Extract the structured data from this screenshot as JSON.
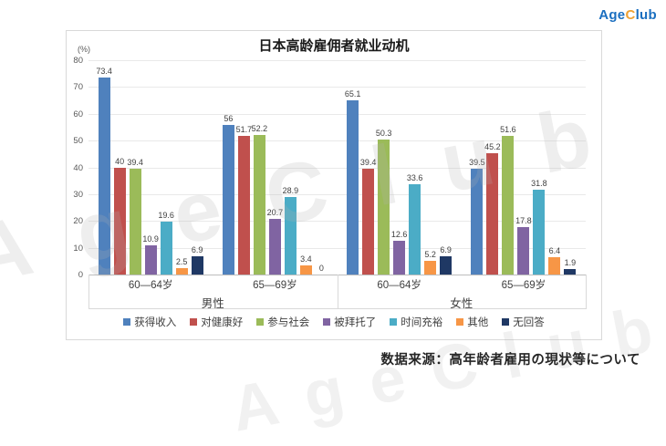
{
  "logo": {
    "part1": "Age",
    "part2": "C",
    "part3": "lub",
    "blue": "#1b6fc0",
    "orange": "#f0a233"
  },
  "watermark": "AgeClub",
  "source": "数据来源：高年龄者雇用の現状等について",
  "chart_data": {
    "type": "bar",
    "title": "日本高龄雇佣者就业动机",
    "unit_label": "(%)",
    "ylim": [
      0,
      80
    ],
    "yticks": [
      0,
      10,
      20,
      30,
      40,
      50,
      60,
      70,
      80
    ],
    "grid": true,
    "legend_position": "bottom",
    "categories": [
      "60—64岁",
      "65—69岁",
      "60—64岁",
      "65—69岁"
    ],
    "sections": [
      "男性",
      "女性"
    ],
    "series": [
      {
        "name": "获得收入",
        "color": "#4F81BD",
        "values": [
          73.4,
          56,
          65.1,
          39.5
        ]
      },
      {
        "name": "对健康好",
        "color": "#C0504D",
        "values": [
          40,
          51.7,
          39.4,
          45.2
        ]
      },
      {
        "name": "参与社会",
        "color": "#9BBB59",
        "values": [
          39.4,
          52.2,
          50.3,
          51.6
        ]
      },
      {
        "name": "被拜托了",
        "color": "#8064A2",
        "values": [
          10.9,
          20.7,
          12.6,
          17.8
        ]
      },
      {
        "name": "时间充裕",
        "color": "#4BACC6",
        "values": [
          19.6,
          28.9,
          33.6,
          31.8
        ]
      },
      {
        "name": "其他",
        "color": "#F79646",
        "values": [
          2.5,
          3.4,
          5.2,
          6.4
        ]
      },
      {
        "name": "无回答",
        "color": "#1F3864",
        "values": [
          6.9,
          0,
          6.9,
          1.9
        ]
      }
    ]
  }
}
